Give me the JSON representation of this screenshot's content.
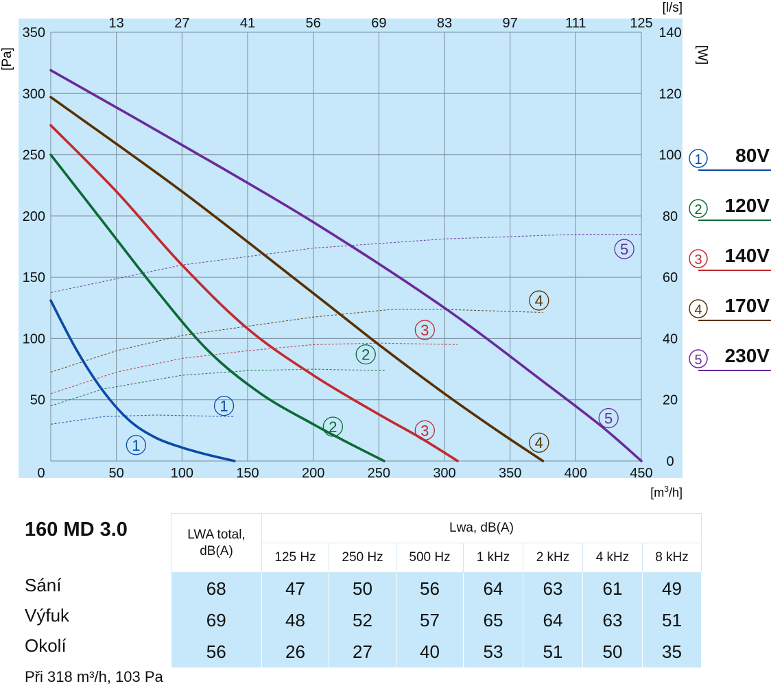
{
  "chart_data": {
    "type": "line",
    "xlabel": "[m³/h]",
    "ylabel": "[Pa]",
    "y2label": "[W]",
    "x2label": "[l/s]",
    "xlim": [
      0,
      450
    ],
    "ylim": [
      0,
      350
    ],
    "y2lim": [
      0,
      140
    ],
    "x_ticks": [
      "0",
      "50",
      "100",
      "150",
      "200",
      "250",
      "300",
      "350",
      "400",
      "450"
    ],
    "y_ticks": [
      "50",
      "100",
      "150",
      "200",
      "250",
      "300",
      "350"
    ],
    "y2_ticks": [
      "0",
      "20",
      "40",
      "60",
      "80",
      "100",
      "120",
      "140"
    ],
    "x2_ticks": [
      "13",
      "27",
      "41",
      "56",
      "69",
      "83",
      "97",
      "111",
      "125"
    ],
    "grid": true,
    "pressure_series": [
      {
        "id": 1,
        "color": "#0d4aa6",
        "points": [
          [
            0,
            131
          ],
          [
            20,
            90
          ],
          [
            40,
            57
          ],
          [
            60,
            33
          ],
          [
            80,
            19
          ],
          [
            100,
            11
          ],
          [
            120,
            5
          ],
          [
            140,
            0
          ]
        ]
      },
      {
        "id": 2,
        "color": "#0c6a35",
        "points": [
          [
            0,
            250
          ],
          [
            40,
            195
          ],
          [
            80,
            140
          ],
          [
            120,
            90
          ],
          [
            160,
            55
          ],
          [
            200,
            30
          ],
          [
            230,
            13
          ],
          [
            254,
            0
          ]
        ]
      },
      {
        "id": 3,
        "color": "#c22a2f",
        "points": [
          [
            0,
            274
          ],
          [
            50,
            220
          ],
          [
            100,
            160
          ],
          [
            150,
            108
          ],
          [
            200,
            70
          ],
          [
            250,
            38
          ],
          [
            280,
            20
          ],
          [
            310,
            0
          ]
        ]
      },
      {
        "id": 4,
        "color": "#5a3100",
        "points": [
          [
            0,
            297
          ],
          [
            100,
            220
          ],
          [
            200,
            137
          ],
          [
            250,
            95
          ],
          [
            300,
            55
          ],
          [
            340,
            25
          ],
          [
            375,
            0
          ]
        ]
      },
      {
        "id": 5,
        "color": "#6a2a9a",
        "points": [
          [
            0,
            319
          ],
          [
            100,
            258
          ],
          [
            200,
            195
          ],
          [
            300,
            125
          ],
          [
            375,
            65
          ],
          [
            420,
            28
          ],
          [
            450,
            0
          ]
        ]
      }
    ],
    "power_series": [
      {
        "id": 1,
        "color": "#0d4aa6",
        "points": [
          [
            0,
            12
          ],
          [
            40,
            14.5
          ],
          [
            80,
            15
          ],
          [
            140,
            14.5
          ]
        ]
      },
      {
        "id": 2,
        "color": "#0c6a35",
        "points": [
          [
            0,
            18
          ],
          [
            40,
            23.5
          ],
          [
            100,
            28
          ],
          [
            150,
            29.5
          ],
          [
            200,
            30
          ],
          [
            255,
            29.5
          ]
        ]
      },
      {
        "id": 3,
        "color": "#c22a2f",
        "points": [
          [
            0,
            22
          ],
          [
            50,
            29
          ],
          [
            100,
            33.5
          ],
          [
            150,
            36
          ],
          [
            200,
            38
          ],
          [
            250,
            38.5
          ],
          [
            310,
            38
          ]
        ]
      },
      {
        "id": 4,
        "color": "#5a3100",
        "points": [
          [
            0,
            29
          ],
          [
            50,
            36
          ],
          [
            100,
            41
          ],
          [
            200,
            47
          ],
          [
            260,
            49.5
          ],
          [
            300,
            49.5
          ],
          [
            375,
            48.5
          ]
        ]
      },
      {
        "id": 5,
        "color": "#6a2a9a",
        "points": [
          [
            0,
            55
          ],
          [
            100,
            64
          ],
          [
            200,
            69.5
          ],
          [
            300,
            72.5
          ],
          [
            400,
            74
          ],
          [
            450,
            74
          ]
        ]
      }
    ],
    "labels": [
      {
        "id": 1,
        "color": "#0d4aa6",
        "at": [
          [
            65,
            13
          ],
          [
            132,
            45
          ]
        ]
      },
      {
        "id": 2,
        "color": "#0c6a35",
        "at": [
          [
            215,
            28
          ],
          [
            240,
            87
          ]
        ]
      },
      {
        "id": 3,
        "color": "#c22a2f",
        "at": [
          [
            285,
            25
          ],
          [
            285,
            107
          ]
        ]
      },
      {
        "id": 4,
        "color": "#5a3100",
        "at": [
          [
            372,
            15
          ],
          [
            372,
            131
          ]
        ]
      },
      {
        "id": 5,
        "color": "#6a2a9a",
        "at": [
          [
            425,
            35
          ],
          [
            437,
            173
          ]
        ]
      }
    ]
  },
  "legend": [
    {
      "symbol": "①",
      "label": "80V",
      "color": "#0d4aa6"
    },
    {
      "symbol": "②",
      "label": "120V",
      "color": "#0c6a35"
    },
    {
      "symbol": "③",
      "label": "140V",
      "color": "#c22a2f"
    },
    {
      "symbol": "④",
      "label": "170V",
      "color": "#5a3100"
    },
    {
      "symbol": "⑤",
      "label": "230V",
      "color": "#6a2a9a"
    }
  ],
  "table": {
    "model": "160 MD 3.0",
    "total_header_line1": "LWA total,",
    "total_header_line2": "dB(A)",
    "band_header": "Lwa, dB(A)",
    "bands": [
      "125 Hz",
      "250 Hz",
      "500 Hz",
      "1 kHz",
      "2 kHz",
      "4 kHz",
      "8 kHz"
    ],
    "rows": [
      {
        "label": "Sání",
        "values": [
          "68",
          "47",
          "50",
          "56",
          "64",
          "63",
          "61",
          "49"
        ]
      },
      {
        "label": "Výfuk",
        "values": [
          "69",
          "48",
          "52",
          "57",
          "65",
          "64",
          "63",
          "51"
        ]
      },
      {
        "label": "Okolí",
        "values": [
          "56",
          "26",
          "27",
          "40",
          "53",
          "51",
          "50",
          "35"
        ]
      }
    ]
  },
  "note": "Při 318 m³/h, 103 Pa",
  "colors": {
    "plot_bg": "#c6e8fa",
    "grid": "#7a8d99"
  }
}
